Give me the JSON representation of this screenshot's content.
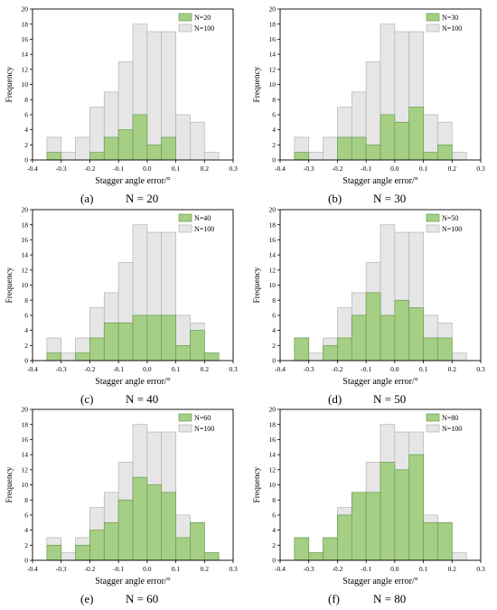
{
  "colors": {
    "bg_hist": "#e6e6e6",
    "bg_hist_stroke": "#b4b4b4",
    "fg_hist": "#a6cf86",
    "fg_hist_stroke": "#6a9a4a",
    "axis": "#000000"
  },
  "shared": {
    "xlabel": "Stagger angle error/°",
    "ylabel": "Frequency",
    "xlim": [
      -0.4,
      0.3
    ],
    "ylim": [
      0,
      20
    ],
    "xticks": [
      "-0.4",
      "-0.3",
      "-0.2",
      "-0.1",
      "0.0",
      "0.1",
      "0.2",
      "0.3"
    ],
    "yticks": [
      "0",
      "2",
      "4",
      "6",
      "8",
      "10",
      "12",
      "14",
      "16",
      "18",
      "20"
    ],
    "bin_edges": [
      -0.35,
      -0.3,
      -0.25,
      -0.2,
      -0.15,
      -0.1,
      -0.05,
      0.0,
      0.05,
      0.1,
      0.15,
      0.2,
      0.25
    ]
  },
  "chart_data": [
    {
      "type": "bar",
      "panel_tag": "(a)",
      "caption": "N = 20",
      "legend": [
        "N=20",
        "N=100"
      ],
      "series": [
        {
          "name": "N=20",
          "values": [
            1,
            0,
            0,
            1,
            3,
            4,
            6,
            2,
            3,
            0,
            0,
            0
          ]
        },
        {
          "name": "N=100",
          "values": [
            3,
            1,
            3,
            7,
            9,
            13,
            18,
            17,
            17,
            6,
            5,
            1
          ]
        }
      ]
    },
    {
      "type": "bar",
      "panel_tag": "(b)",
      "caption": "N = 30",
      "legend": [
        "N=30",
        "N=100"
      ],
      "series": [
        {
          "name": "N=30",
          "values": [
            1,
            0,
            0,
            3,
            3,
            2,
            6,
            5,
            7,
            1,
            2,
            0
          ]
        },
        {
          "name": "N=100",
          "values": [
            3,
            1,
            3,
            7,
            9,
            13,
            18,
            17,
            17,
            6,
            5,
            1
          ]
        }
      ]
    },
    {
      "type": "bar",
      "panel_tag": "(c)",
      "caption": "N = 40",
      "legend": [
        "N=40",
        "N=100"
      ],
      "series": [
        {
          "name": "N=40",
          "values": [
            1,
            0,
            1,
            3,
            5,
            5,
            6,
            6,
            6,
            2,
            4,
            1
          ]
        },
        {
          "name": "N=100",
          "values": [
            3,
            1,
            3,
            7,
            9,
            13,
            18,
            17,
            17,
            6,
            5,
            1
          ]
        }
      ]
    },
    {
      "type": "bar",
      "panel_tag": "(d)",
      "caption": "N = 50",
      "legend": [
        "N=50",
        "N=100"
      ],
      "series": [
        {
          "name": "N=50",
          "values": [
            3,
            0,
            2,
            3,
            6,
            9,
            6,
            8,
            7,
            3,
            3,
            0
          ]
        },
        {
          "name": "N=100",
          "values": [
            3,
            1,
            3,
            7,
            9,
            13,
            18,
            17,
            17,
            6,
            5,
            1
          ]
        }
      ]
    },
    {
      "type": "bar",
      "panel_tag": "(e)",
      "caption": "N = 60",
      "legend": [
        "N=60",
        "N=100"
      ],
      "series": [
        {
          "name": "N=60",
          "values": [
            2,
            0,
            2,
            4,
            5,
            8,
            11,
            10,
            9,
            3,
            5,
            1
          ]
        },
        {
          "name": "N=100",
          "values": [
            3,
            1,
            3,
            7,
            9,
            13,
            18,
            17,
            17,
            6,
            5,
            1
          ]
        }
      ]
    },
    {
      "type": "bar",
      "panel_tag": "(f)",
      "caption": "N = 80",
      "legend": [
        "N=80",
        "N=100"
      ],
      "series": [
        {
          "name": "N=80",
          "values": [
            3,
            1,
            3,
            6,
            9,
            9,
            13,
            12,
            14,
            5,
            5,
            0
          ]
        },
        {
          "name": "N=100",
          "values": [
            3,
            1,
            3,
            7,
            9,
            13,
            18,
            17,
            17,
            6,
            5,
            1
          ]
        }
      ]
    }
  ]
}
